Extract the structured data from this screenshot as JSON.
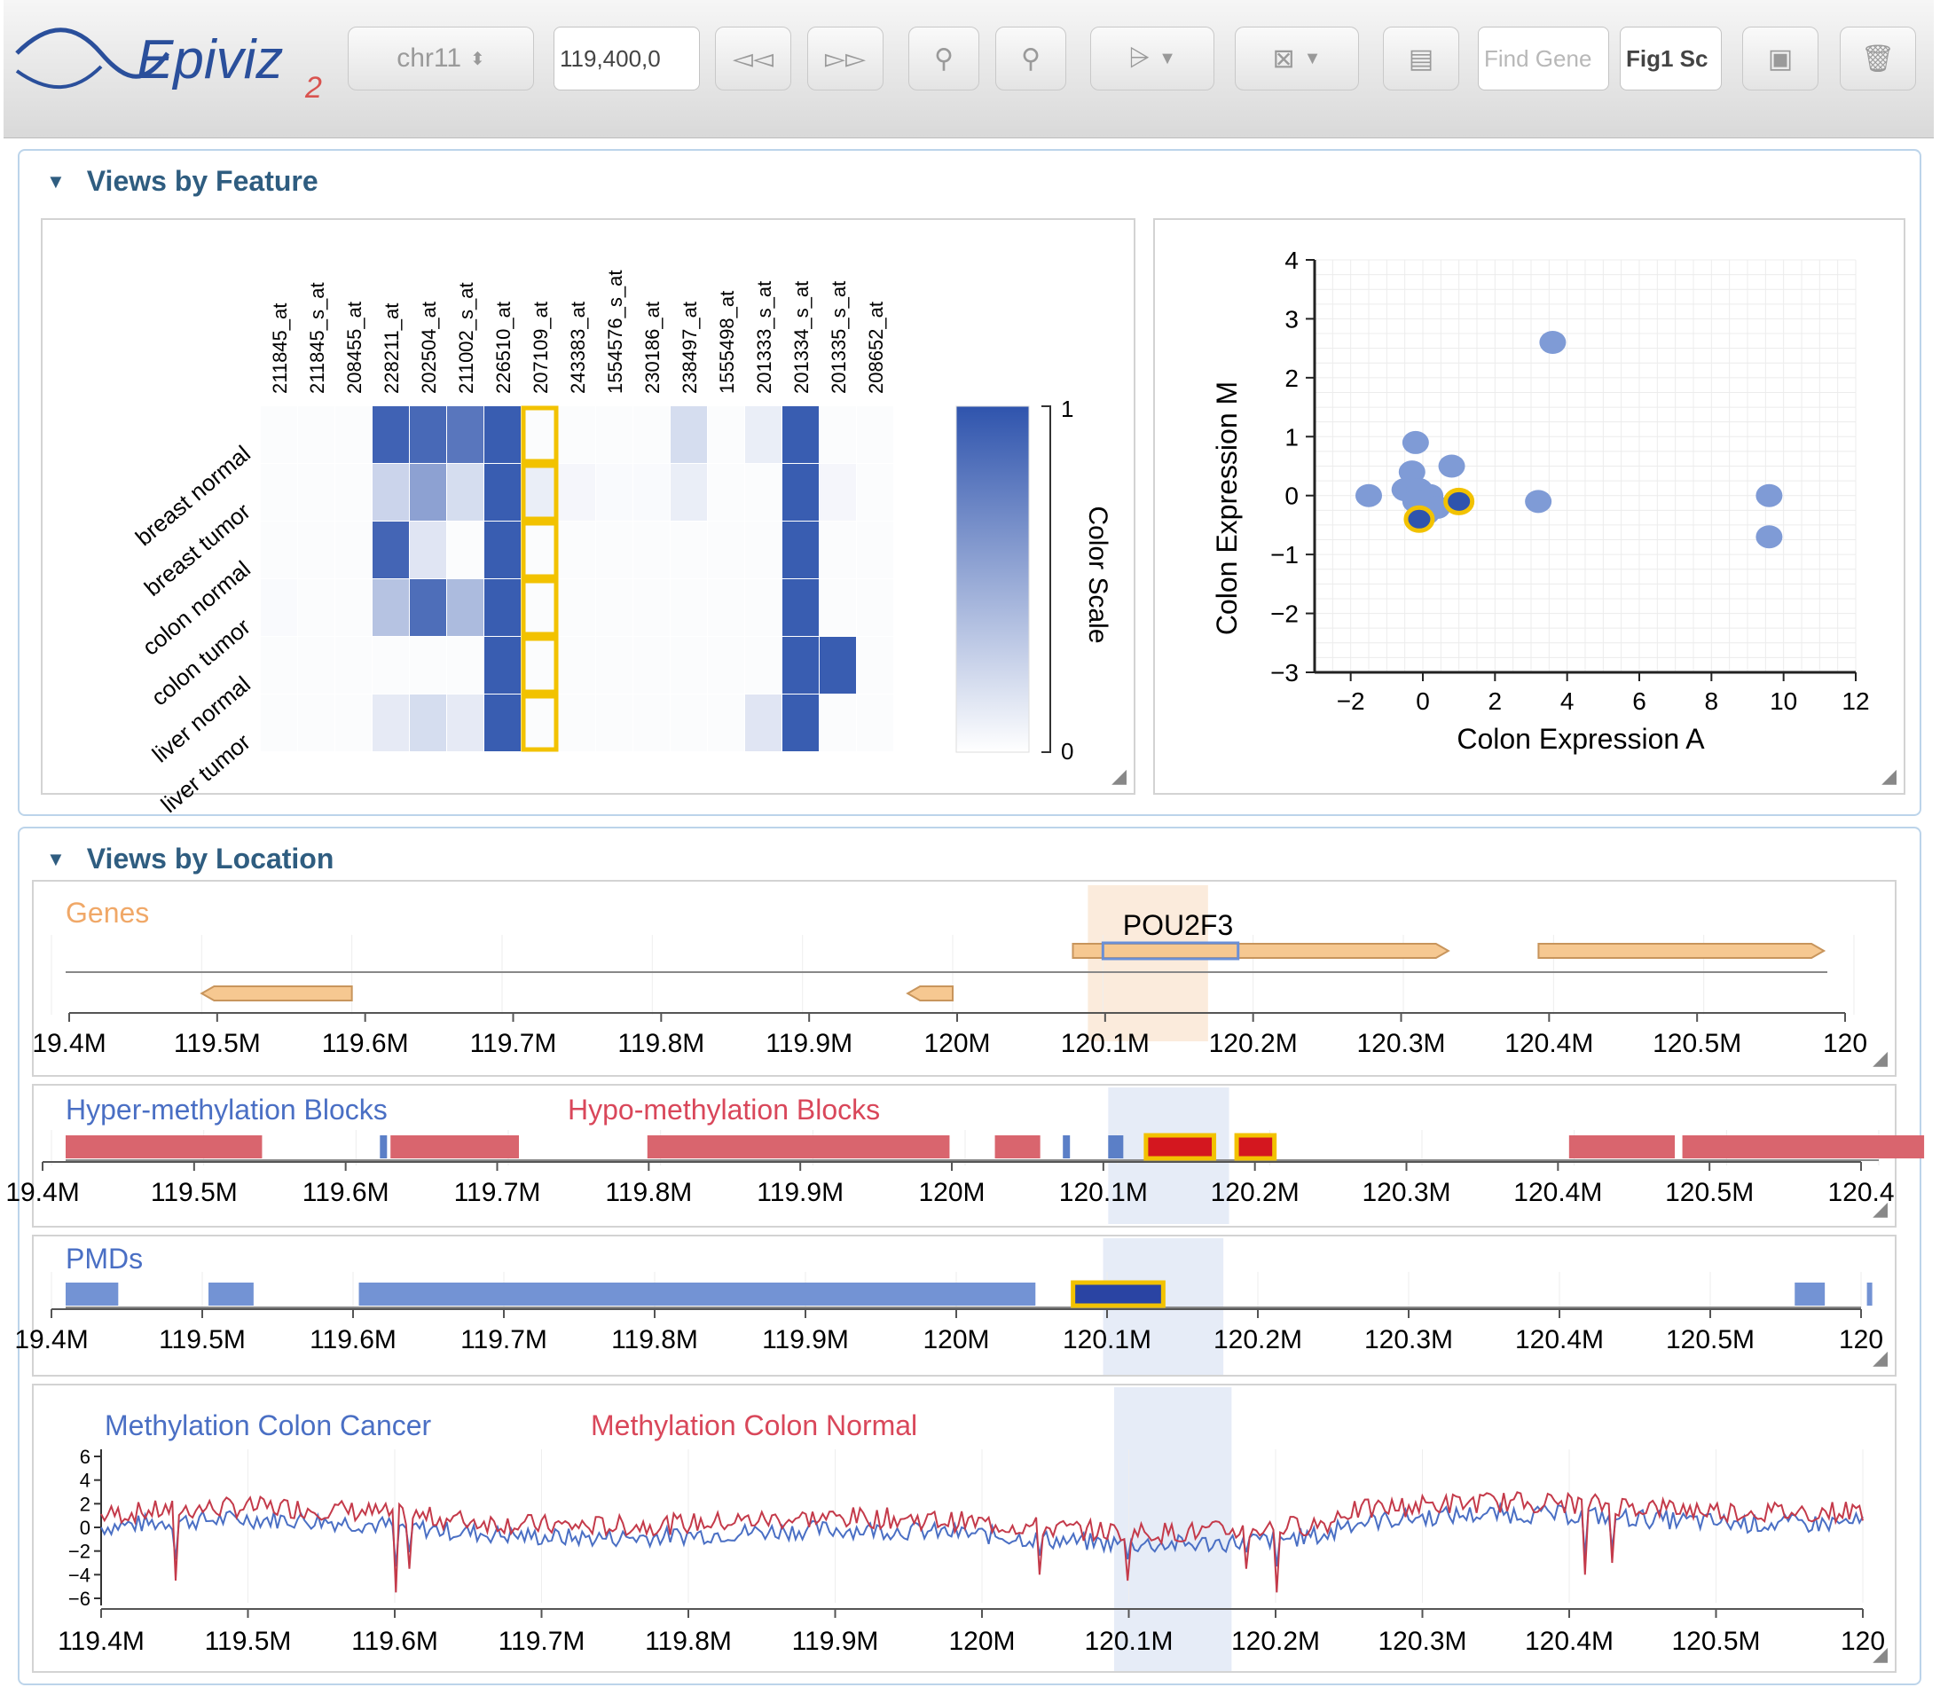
{
  "toolbar": {
    "logo_text": "Epiviz",
    "logo_version": "2",
    "chromosome": "chr11",
    "location_value": "119,400,0",
    "find_gene_placeholder": "Find Gene",
    "workspace_value": "Fig1 Sc"
  },
  "feature_section": {
    "title": "Views by Feature"
  },
  "heatmap": {
    "columns": [
      "211845_at",
      "211845_s_at",
      "208455_at",
      "228211_at",
      "202504_at",
      "211002_s_at",
      "226510_at",
      "207109_at",
      "243383_at",
      "1554576_s_at",
      "230186_at",
      "238497_at",
      "1555498_at",
      "201333_s_at",
      "201334_s_at",
      "201335_s_at",
      "208652_at"
    ],
    "rows": [
      "breast normal",
      "breast tumor",
      "colon normal",
      "colon tumor",
      "liver normal",
      "liver tumor"
    ],
    "highlight_column": 7,
    "values": [
      [
        0.02,
        0.02,
        0.02,
        0.92,
        0.88,
        0.8,
        0.95,
        0.02,
        0.02,
        0.02,
        0.02,
        0.2,
        0.02,
        0.1,
        0.95,
        0.02,
        0.02
      ],
      [
        0.02,
        0.02,
        0.02,
        0.25,
        0.55,
        0.2,
        0.95,
        0.1,
        0.05,
        0.03,
        0.03,
        0.1,
        0.02,
        0.02,
        0.95,
        0.05,
        0.02
      ],
      [
        0.02,
        0.02,
        0.02,
        0.9,
        0.15,
        0.02,
        0.95,
        0.02,
        0.02,
        0.02,
        0.02,
        0.02,
        0.02,
        0.02,
        0.95,
        0.02,
        0.02
      ],
      [
        0.03,
        0.02,
        0.02,
        0.35,
        0.85,
        0.4,
        0.95,
        0.02,
        0.02,
        0.02,
        0.02,
        0.02,
        0.02,
        0.02,
        0.95,
        0.02,
        0.02
      ],
      [
        0.02,
        0.02,
        0.02,
        0.02,
        0.02,
        0.02,
        0.95,
        0.02,
        0.02,
        0.02,
        0.02,
        0.02,
        0.02,
        0.02,
        0.95,
        0.95,
        0.02
      ],
      [
        0.02,
        0.02,
        0.02,
        0.12,
        0.2,
        0.12,
        0.95,
        0.02,
        0.02,
        0.02,
        0.02,
        0.02,
        0.02,
        0.15,
        0.95,
        0.02,
        0.02
      ]
    ],
    "scale_label": "Color Scale",
    "scale_max": "1",
    "scale_min": "0"
  },
  "scatter": {
    "xlabel": "Colon Expression A",
    "ylabel": "Colon Expression M",
    "xticks": [
      "−2",
      "0",
      "2",
      "4",
      "6",
      "8",
      "10",
      "12"
    ],
    "yticks": [
      "4",
      "3",
      "2",
      "1",
      "0",
      "−1",
      "−2",
      "−3"
    ]
  },
  "location_section": {
    "title": "Views by Location"
  },
  "genes_track": {
    "title": "Genes",
    "gene_label": "POU2F3",
    "ticks": [
      "19.4M",
      "119.5M",
      "119.6M",
      "119.7M",
      "119.8M",
      "119.9M",
      "120M",
      "120.1M",
      "120.2M",
      "120.3M",
      "120.4M",
      "120.5M",
      "120"
    ]
  },
  "blocks_track": {
    "legend_hyper": "Hyper-methylation Blocks",
    "legend_hypo": "Hypo-methylation Blocks",
    "ticks": [
      "19.4M",
      "119.5M",
      "119.6M",
      "119.7M",
      "119.8M",
      "119.9M",
      "120M",
      "120.1M",
      "120.2M",
      "120.3M",
      "120.4M",
      "120.5M",
      "120.4"
    ]
  },
  "pmd_track": {
    "title": "PMDs",
    "ticks": [
      "19.4M",
      "119.5M",
      "119.6M",
      "119.7M",
      "119.8M",
      "119.9M",
      "120M",
      "120.1M",
      "120.2M",
      "120.3M",
      "120.4M",
      "120.5M",
      "120"
    ]
  },
  "methylation_track": {
    "legend_cancer": "Methylation Colon Cancer",
    "legend_normal": "Methylation Colon Normal",
    "yticks": [
      "6",
      "4",
      "2",
      "0",
      "−2",
      "−4",
      "−6"
    ],
    "ticks": [
      "119.4M",
      "119.5M",
      "119.6M",
      "119.7M",
      "119.8M",
      "119.9M",
      "120M",
      "120.1M",
      "120.2M",
      "120.3M",
      "120.4M",
      "120.5M",
      "120"
    ]
  },
  "chart_data": [
    {
      "type": "heatmap",
      "title": "",
      "xlabel": "",
      "ylabel": "",
      "legend_title": "Color Scale",
      "range": [
        0,
        1
      ]
    },
    {
      "type": "scatter",
      "xlabel": "Colon Expression A",
      "ylabel": "Colon Expression M",
      "xlim": [
        -3,
        12
      ],
      "ylim": [
        -3,
        4
      ],
      "grid": true,
      "points": [
        {
          "x": 3.6,
          "y": 2.6
        },
        {
          "x": -0.2,
          "y": 0.9
        },
        {
          "x": 0.8,
          "y": 0.5
        },
        {
          "x": -0.3,
          "y": 0.4
        },
        {
          "x": -1.5,
          "y": 0.0
        },
        {
          "x": -0.5,
          "y": 0.1
        },
        {
          "x": -0.1,
          "y": 0.1
        },
        {
          "x": 0.2,
          "y": 0.0
        },
        {
          "x": 0.4,
          "y": -0.2
        },
        {
          "x": -0.2,
          "y": -0.1
        },
        {
          "x": 0.1,
          "y": -0.3
        },
        {
          "x": 3.2,
          "y": -0.1
        },
        {
          "x": 9.6,
          "y": 0.0
        },
        {
          "x": 9.6,
          "y": -0.7
        }
      ],
      "highlighted": [
        {
          "x": -0.1,
          "y": -0.4
        },
        {
          "x": 1.0,
          "y": -0.1
        }
      ]
    },
    {
      "type": "table",
      "title": "Genes",
      "ticks": [
        "19.4M",
        "119.5M",
        "119.6M",
        "119.7M",
        "119.8M",
        "119.9M",
        "120M",
        "120.1M",
        "120.2M",
        "120.3M",
        "120.4M",
        "120.5M",
        "120"
      ],
      "genes": [
        {
          "name": "POU2F3",
          "start": 120.08,
          "end": 120.33,
          "strand": "+"
        },
        {
          "start": 120.39,
          "end": 120.58,
          "strand": "+"
        },
        {
          "start": 119.5,
          "end": 119.6,
          "strand": "-"
        },
        {
          "start": 119.97,
          "end": 120.0,
          "strand": "-"
        }
      ]
    },
    {
      "type": "table",
      "series": [
        {
          "name": "Hyper-methylation Blocks",
          "color": "#5b7fc7",
          "blocks": [
            [
              119.608,
              119.612
            ],
            [
              120.06,
              120.063
            ],
            [
              120.09,
              120.1
            ]
          ]
        },
        {
          "name": "Hypo-methylation Blocks",
          "color": "#d9656e",
          "blocks": [
            [
              119.4,
              119.53
            ],
            [
              119.615,
              119.7
            ],
            [
              119.785,
              119.985
            ],
            [
              120.015,
              120.045
            ],
            [
              120.115,
              120.16
            ],
            [
              120.175,
              120.2
            ],
            [
              120.395,
              120.465
            ],
            [
              120.47,
              120.63
            ]
          ]
        }
      ]
    },
    {
      "type": "table",
      "title": "PMDs",
      "blocks": [
        [
          119.4,
          119.435
        ],
        [
          119.495,
          119.525
        ],
        [
          119.595,
          120.045
        ],
        [
          120.105,
          120.13
        ],
        [
          120.55,
          120.57
        ],
        [
          120.598,
          120.6
        ]
      ]
    },
    {
      "type": "line",
      "x_range": [
        119.4,
        120.6
      ],
      "ylim": [
        -6,
        6
      ],
      "series": [
        {
          "name": "Methylation Colon Cancer",
          "color": "#4a6fc4"
        },
        {
          "name": "Methylation Colon Normal",
          "color": "#c43a4a"
        }
      ],
      "dips": [
        {
          "x": 119.45,
          "normal": -4.5
        },
        {
          "x": 119.6,
          "normal": -5.5
        },
        {
          "x": 119.61,
          "normal": -3.5
        },
        {
          "x": 120.04,
          "normal": -4.0
        },
        {
          "x": 120.1,
          "normal": -4.5
        },
        {
          "x": 120.18,
          "normal": -3.5
        },
        {
          "x": 120.2,
          "normal": -5.5
        },
        {
          "x": 120.41,
          "normal": -4.0
        },
        {
          "x": 120.43,
          "normal": -3.0
        }
      ]
    }
  ]
}
